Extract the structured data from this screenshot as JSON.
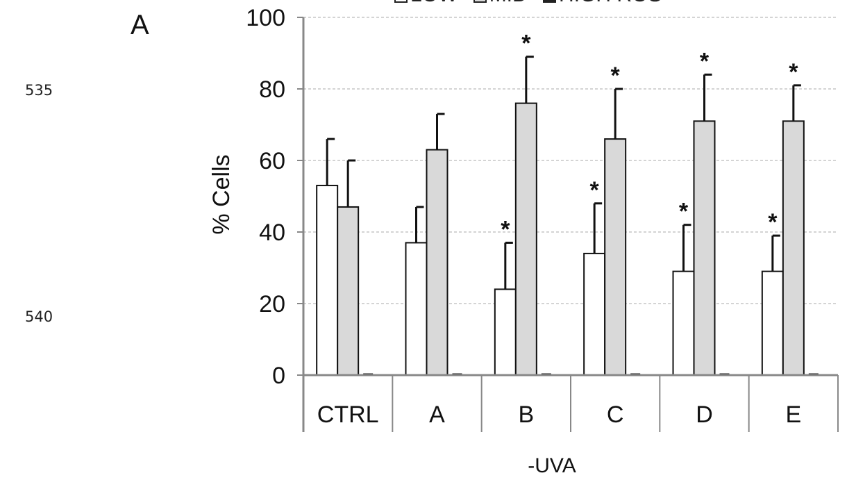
{
  "line_numbers": [
    "535",
    "540"
  ],
  "panel_label": "A",
  "chart_data": {
    "type": "bar",
    "categories": [
      "CTRL",
      "A",
      "B",
      "C",
      "D",
      "E"
    ],
    "xlabel": "-UVA",
    "ylabel": "% Cells",
    "ylim": [
      0,
      100
    ],
    "yticks": [
      "0",
      "20",
      "40",
      "60",
      "80",
      "100"
    ],
    "grid": true,
    "legend_position": "top",
    "series": [
      {
        "name": "LOW",
        "color": "#ffffff",
        "values": [
          53,
          37,
          24,
          34,
          29,
          29
        ],
        "errors": [
          13,
          10,
          13,
          14,
          13,
          10
        ]
      },
      {
        "name": "MID",
        "color": "#d9d9d9",
        "values": [
          47,
          63,
          76,
          66,
          71,
          71
        ],
        "errors": [
          13,
          10,
          13,
          14,
          13,
          10
        ]
      },
      {
        "name": "HIGH ROS",
        "color": "#222222",
        "values": [
          0,
          0.3,
          0.5,
          0.3,
          0.7,
          0.7
        ],
        "errors": [
          0,
          0,
          0,
          0,
          0,
          0
        ]
      }
    ],
    "significance_marker": "*",
    "significant": {
      "LOW": [
        false,
        false,
        true,
        true,
        true,
        true
      ],
      "MID": [
        false,
        false,
        true,
        true,
        true,
        true
      ]
    }
  }
}
